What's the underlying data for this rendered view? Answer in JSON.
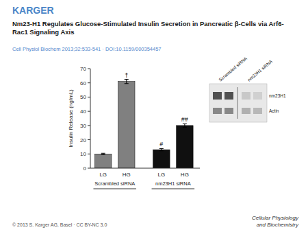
{
  "chart_data": {
    "type": "bar",
    "brand": "KARGER",
    "title": "Nm23-H1 Regulates Glucose-Stimulated Insulin Secretion in Pancreatic β-Cells via Arf6-\nRac1 Signaling Axis",
    "subtitle": "Cell Physiol Biochem 2013;32:533-541 · DOI:10.1159/000354457",
    "footer_left": "© 2013 S. Karger AG, Basel · CC BY-NC 3.0",
    "footer_right": "Cellular Physiology\nand Biochemistry",
    "ylabel": "Insulin Release (ng/mL)",
    "categories": [
      "LG",
      "HG",
      "LG",
      "HG"
    ],
    "groups": [
      "Scrambled siRNA",
      "nm23H1 siRNA"
    ],
    "values": [
      10,
      61,
      13,
      30
    ],
    "errors": [
      0.5,
      1.5,
      0.8,
      1.2
    ],
    "colors": [
      "#808080",
      "#808080",
      "#101010",
      "#101010"
    ],
    "annotations": [
      null,
      "†",
      "#",
      "##"
    ],
    "ylim": [
      0,
      70
    ],
    "yticks": [
      0,
      10,
      20,
      30,
      40,
      50,
      60,
      70
    ],
    "grid": false,
    "inset": {
      "row_labels": [
        "nm23H1",
        "Actin"
      ],
      "column_labels": [
        "Scrambled siRNA",
        "nm23H1 siRNA"
      ],
      "band_colors_top": [
        "#505050",
        "#505050",
        "#c8c8c8",
        "#d0d0d0"
      ],
      "band_colors_bottom": [
        "#888888",
        "#888888",
        "#b0b0b0",
        "#b8b8b8"
      ]
    }
  }
}
